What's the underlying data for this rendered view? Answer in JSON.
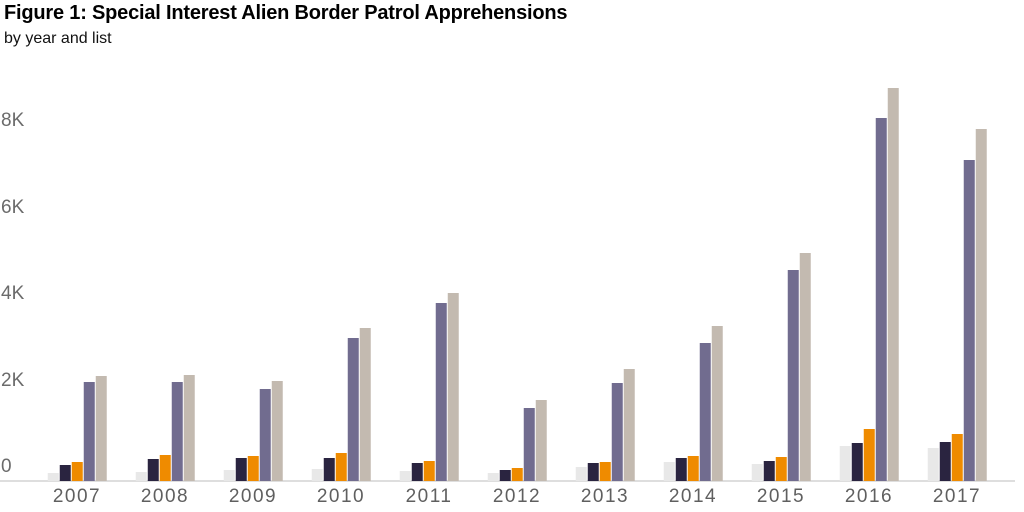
{
  "header": {
    "title": "Figure 1: Special Interest Alien Border Patrol Apprehensions",
    "subtitle": "by year and list"
  },
  "chart_data": {
    "type": "bar",
    "title": "Figure 1: Special Interest Alien Border Patrol Apprehensions",
    "subtitle": "by year and list",
    "xlabel": "",
    "ylabel": "",
    "grid": false,
    "legend": "none",
    "categories": [
      "2007",
      "2008",
      "2009",
      "2010",
      "2011",
      "2012",
      "2013",
      "2014",
      "2015",
      "2016",
      "2017"
    ],
    "series": [
      {
        "name": "series-1-light-gray",
        "color": "#e8e8e8",
        "values": [
          195,
          210,
          260,
          280,
          235,
          185,
          330,
          450,
          410,
          810,
          780
        ]
      },
      {
        "name": "series-2-dark-navy",
        "color": "#2a2440",
        "values": [
          375,
          525,
          530,
          530,
          415,
          250,
          425,
          540,
          480,
          890,
          920
        ]
      },
      {
        "name": "series-3-orange",
        "color": "#ef8b00",
        "values": [
          450,
          610,
          590,
          665,
          465,
          310,
          450,
          580,
          555,
          1215,
          1095
        ]
      },
      {
        "name": "series-4-purple",
        "color": "#716c8f",
        "values": [
          2305,
          2300,
          2130,
          3325,
          4120,
          1700,
          2285,
          3205,
          4900,
          8400,
          7425
        ]
      },
      {
        "name": "series-5-tan",
        "color": "#c3bab0",
        "values": [
          2430,
          2455,
          2320,
          3555,
          4365,
          1885,
          2590,
          3590,
          5290,
          9100,
          8165
        ]
      }
    ],
    "y_axis": {
      "range": [
        0,
        9200
      ],
      "ticks": [
        {
          "value": 0,
          "label": "0"
        },
        {
          "value": 2000,
          "label": "2K"
        },
        {
          "value": 4000,
          "label": "4K"
        },
        {
          "value": 6000,
          "label": "6K"
        },
        {
          "value": 8000,
          "label": "8K"
        }
      ]
    },
    "colors": {
      "axis_line": "#dedede",
      "y_tick_text": "#6b6b6b",
      "x_tick_text": "#5f5f5f",
      "title_text": "#000000",
      "subtitle_text": "#111111"
    }
  }
}
